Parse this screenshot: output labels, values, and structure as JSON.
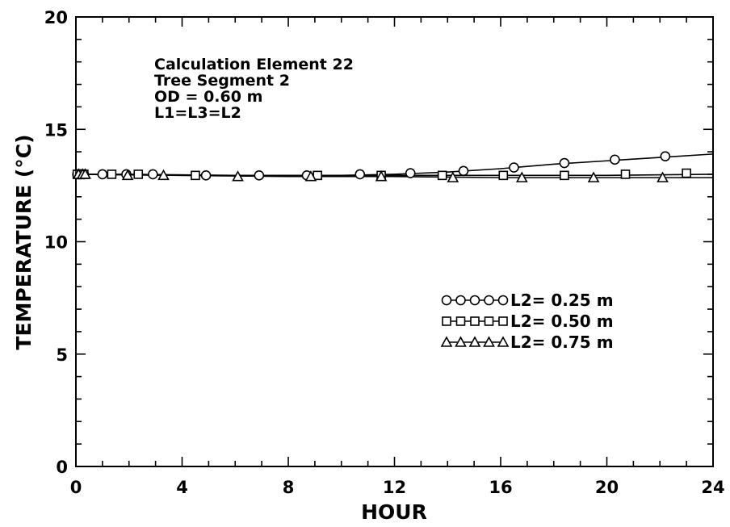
{
  "chart_data": {
    "type": "line",
    "xlabel": "HOUR",
    "ylabel": "TEMPERATURE  (°C)",
    "xlim": [
      0,
      24
    ],
    "ylim": [
      0,
      20
    ],
    "x_ticks": [
      "0",
      "4",
      "8",
      "12",
      "16",
      "20",
      "24"
    ],
    "y_ticks": [
      "0",
      "5",
      "10",
      "15",
      "20"
    ],
    "grid": false,
    "legend_position": "right-middle",
    "annotations": [
      "Calculation Element 22",
      "Tree Segment 2",
      "OD = 0.60 m",
      "L1=L3=L2"
    ],
    "series": [
      {
        "name": "L2= 0.25 m",
        "marker": "circle",
        "line": {
          "x": [
            0,
            2,
            6,
            10,
            12,
            14,
            16,
            18,
            20,
            22,
            24
          ],
          "y": [
            13.0,
            13.0,
            12.95,
            12.95,
            13.0,
            13.1,
            13.25,
            13.45,
            13.6,
            13.75,
            13.9
          ]
        },
        "markers": {
          "x": [
            0.05,
            0.1,
            0.15,
            0.2,
            0.3,
            1.0,
            1.9,
            2.9,
            4.9,
            6.9,
            8.7,
            10.7,
            12.6,
            14.6,
            16.5,
            18.4,
            20.3,
            22.2
          ],
          "y": [
            13.0,
            13.0,
            13.0,
            13.0,
            13.0,
            13.0,
            13.0,
            13.0,
            12.95,
            12.95,
            12.95,
            13.0,
            13.05,
            13.15,
            13.3,
            13.5,
            13.65,
            13.8
          ]
        }
      },
      {
        "name": "L2= 0.50 m",
        "marker": "square",
        "line": {
          "x": [
            0,
            4,
            8,
            12,
            16,
            20,
            24
          ],
          "y": [
            13.0,
            12.95,
            12.95,
            12.95,
            12.95,
            12.95,
            13.0
          ]
        },
        "markers": {
          "x": [
            0.05,
            0.15,
            0.3,
            1.35,
            2.35,
            4.5,
            9.1,
            11.5,
            13.8,
            16.1,
            18.4,
            20.7,
            23.0
          ],
          "y": [
            13.0,
            13.0,
            13.0,
            13.0,
            13.0,
            12.95,
            12.95,
            12.95,
            12.95,
            12.95,
            12.95,
            13.0,
            13.05
          ]
        }
      },
      {
        "name": "L2= 0.75 m",
        "marker": "triangle",
        "line": {
          "x": [
            0,
            4,
            8,
            12,
            16,
            20,
            24
          ],
          "y": [
            13.0,
            12.95,
            12.9,
            12.9,
            12.85,
            12.85,
            12.85
          ]
        },
        "markers": {
          "x": [
            0.1,
            0.25,
            0.35,
            1.95,
            3.3,
            6.1,
            8.85,
            11.5,
            14.2,
            16.8,
            19.5,
            22.1
          ],
          "y": [
            13.0,
            13.0,
            13.0,
            12.95,
            12.95,
            12.9,
            12.9,
            12.9,
            12.85,
            12.85,
            12.85,
            12.85
          ]
        }
      }
    ]
  }
}
